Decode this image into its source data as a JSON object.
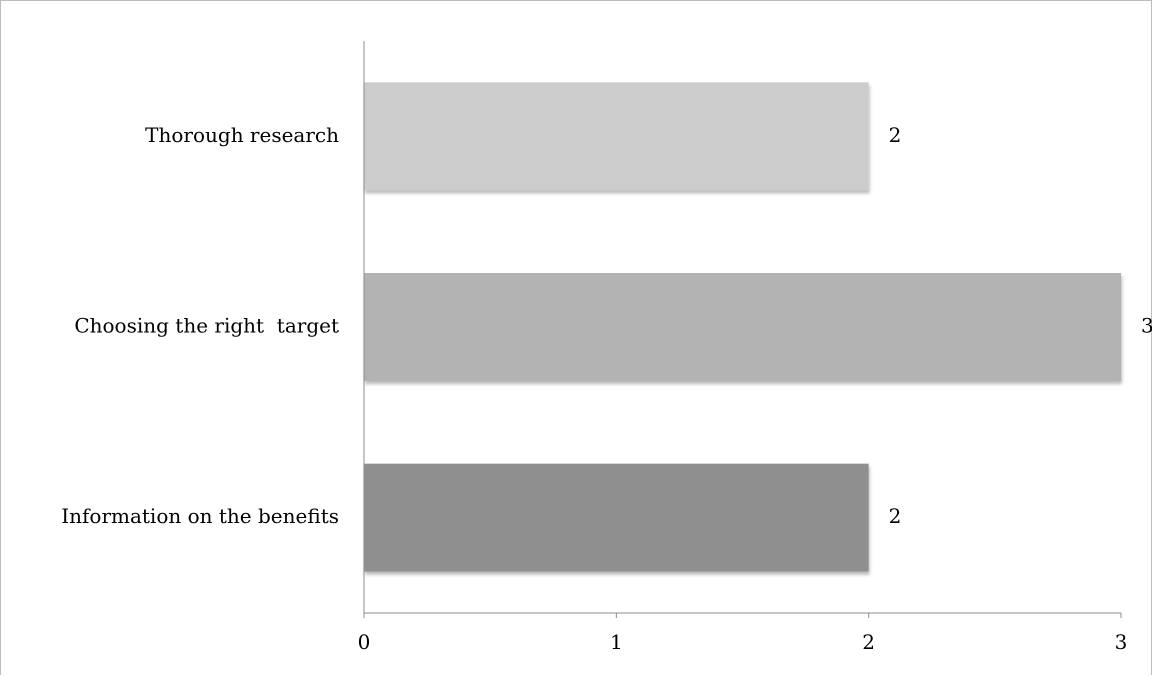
{
  "chart_data": {
    "type": "bar",
    "orientation": "horizontal",
    "categories": [
      "Thorough research",
      "Choosing the right  target",
      "Information on the benefits"
    ],
    "values": [
      2,
      3,
      2
    ],
    "bar_colors": [
      "#cccccc",
      "#b3b3b3",
      "#8f8f8f"
    ],
    "data_labels": [
      "2",
      "3",
      "2"
    ],
    "xlim": [
      0,
      3
    ],
    "x_ticks": [
      0,
      1,
      2,
      3
    ],
    "x_tick_labels": [
      "0",
      "1",
      "2",
      "3"
    ],
    "grid": false,
    "legend": "none"
  }
}
